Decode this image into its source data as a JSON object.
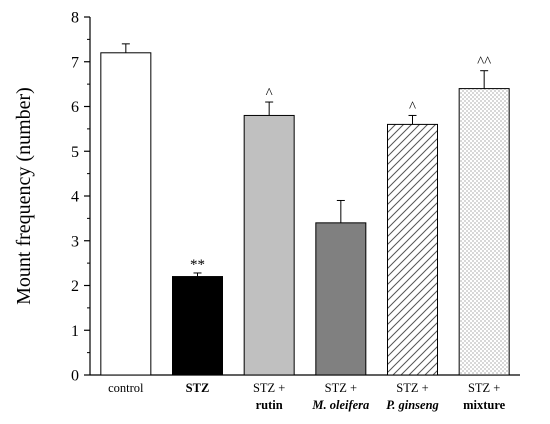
{
  "chart_data": {
    "type": "bar",
    "ylabel": "Mount frequency (number)",
    "ylim": [
      0,
      8
    ],
    "yticks": [
      0,
      1,
      2,
      3,
      4,
      5,
      6,
      7,
      8
    ],
    "categories": [
      {
        "line1": "control",
        "line1_bold": false,
        "line1_italic": false,
        "line2": "",
        "line2_bold": false,
        "line2_italic": false
      },
      {
        "line1": "STZ",
        "line1_bold": true,
        "line1_italic": false,
        "line2": "",
        "line2_bold": false,
        "line2_italic": false
      },
      {
        "line1": "STZ +",
        "line1_bold": false,
        "line1_italic": false,
        "line2": "rutin",
        "line2_bold": true,
        "line2_italic": false
      },
      {
        "line1": "STZ +",
        "line1_bold": false,
        "line1_italic": false,
        "line2": "M. oleifera",
        "line2_bold": true,
        "line2_italic": true
      },
      {
        "line1": "STZ +",
        "line1_bold": false,
        "line1_italic": false,
        "line2": "P. ginseng",
        "line2_bold": true,
        "line2_italic": true
      },
      {
        "line1": "STZ +",
        "line1_bold": false,
        "line1_italic": false,
        "line2": "mixture",
        "line2_bold": true,
        "line2_italic": false
      }
    ],
    "values": [
      7.2,
      2.2,
      5.8,
      3.4,
      5.6,
      6.4
    ],
    "errors": [
      0.2,
      0.08,
      0.3,
      0.5,
      0.2,
      0.4
    ],
    "annotations": [
      "",
      "**",
      "^",
      "",
      "^",
      "^^"
    ],
    "fills": [
      "white",
      "black",
      "lightgray",
      "darkgray",
      "hatch",
      "dots"
    ],
    "colors": {
      "white": "#ffffff",
      "black": "#000000",
      "lightgray": "#c0c0c0",
      "darkgray": "#808080"
    },
    "grid": false,
    "legend": "none"
  }
}
